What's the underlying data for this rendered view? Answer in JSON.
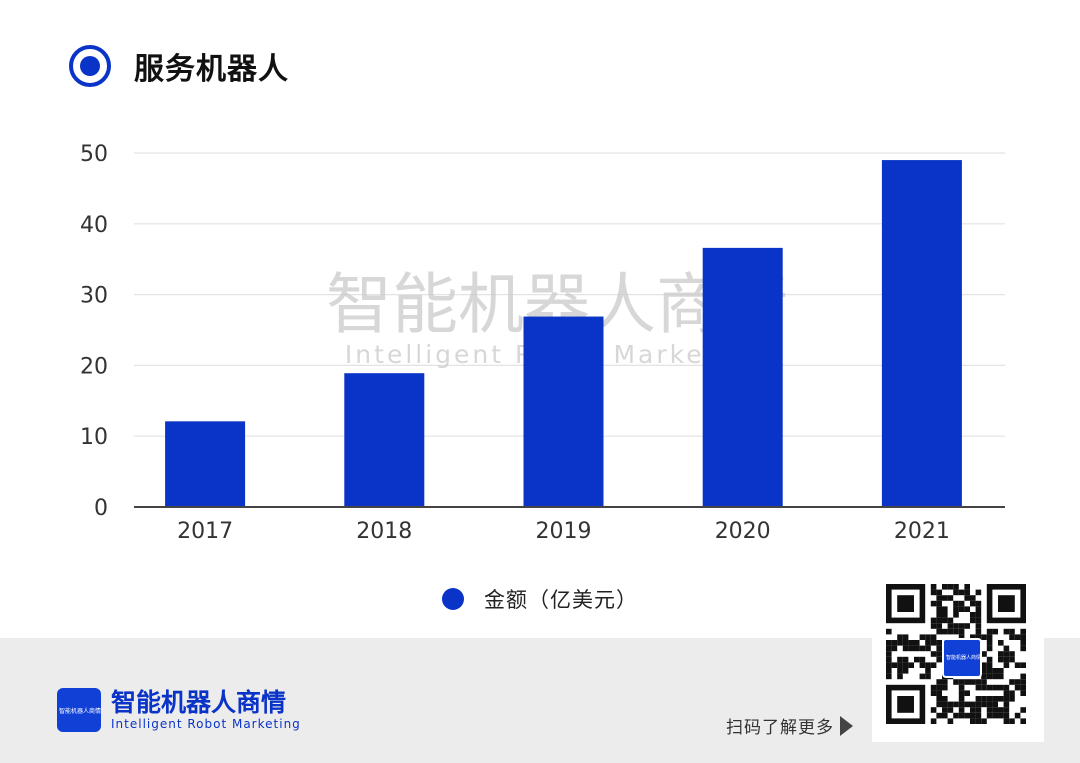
{
  "header": {
    "title": "服务机器人",
    "icon": "radio-target-icon"
  },
  "chart_data": {
    "type": "bar",
    "title": "服务机器人",
    "categories": [
      "2017",
      "2018",
      "2019",
      "2020",
      "2021"
    ],
    "series": [
      {
        "name": "金额（亿美元）",
        "values": [
          12.1,
          18.9,
          26.9,
          36.6,
          49.0
        ]
      }
    ],
    "ylim": [
      0,
      50
    ],
    "yticks": [
      0,
      10,
      20,
      30,
      40,
      50
    ],
    "grid": true,
    "legend": "bottom",
    "colors": {
      "bar": "#0a33c8",
      "grid": "#e3e3e3",
      "axis": "#444444"
    }
  },
  "watermark": {
    "main": "智能机器人商情",
    "sub": "Intelligent Robot Marketing"
  },
  "footer": {
    "brand_name": "智能机器人商情",
    "brand_sub": "Intelligent Robot Marketing",
    "logo_text": "智能机器人商情",
    "scan_label": "扫码了解更多"
  }
}
